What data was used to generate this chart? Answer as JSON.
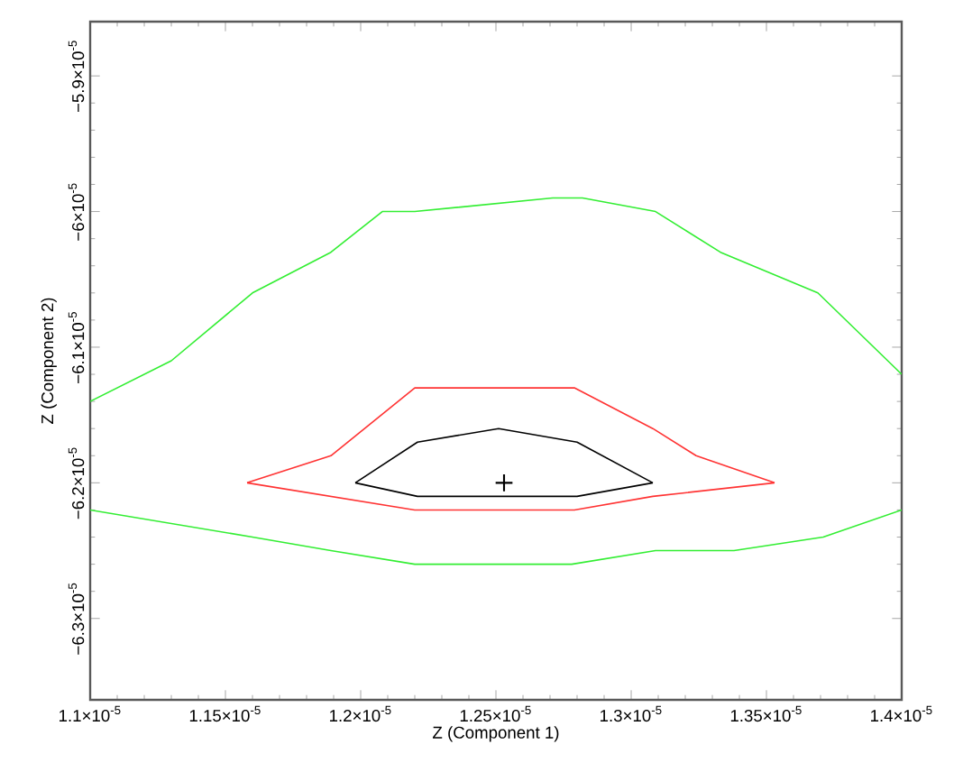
{
  "chart_data": {
    "type": "line",
    "xlabel": "Z (Component 1)",
    "ylabel": "Z (Component 2)",
    "xlim": [
      1.1e-05,
      1.4e-05
    ],
    "ylim": [
      -6.36e-05,
      -5.86e-05
    ],
    "xticks": [
      {
        "value": 1.1e-05,
        "label": "1.1×10$^{-5}$"
      },
      {
        "value": 1.15e-05,
        "label": "1.15×10$^{-5}$"
      },
      {
        "value": 1.2e-05,
        "label": "1.2×10$^{-5}$"
      },
      {
        "value": 1.25e-05,
        "label": "1.25×10$^{-5}$"
      },
      {
        "value": 1.3e-05,
        "label": "1.3×10$^{-5}$"
      },
      {
        "value": 1.35e-05,
        "label": "1.35×10$^{-5}$"
      },
      {
        "value": 1.4e-05,
        "label": "1.4×10$^{-5}$"
      }
    ],
    "yticks": [
      {
        "value": -6.3e-05,
        "label": "−6.3×10$^{-5}$"
      },
      {
        "value": -6.2e-05,
        "label": "−6.2×10$^{-5}$"
      },
      {
        "value": -6.1e-05,
        "label": "−6.1×10$^{-5}$"
      },
      {
        "value": -6e-05,
        "label": "−6×10$^{-5}$"
      },
      {
        "value": -5.9e-05,
        "label": "−5.9×10$^{-5}$"
      }
    ],
    "grid": false,
    "series": [
      {
        "color": "#33ee33",
        "x": [
          1.1e-05,
          1.13e-05,
          1.16e-05,
          1.189e-05,
          1.208e-05,
          1.22e-05,
          1.271e-05,
          1.282e-05,
          1.309e-05,
          1.333e-05,
          1.369e-05,
          1.4e-05
        ],
        "values": [
          -6.14e-05,
          -6.11e-05,
          -6.06e-05,
          -6.03e-05,
          -6e-05,
          -6e-05,
          -5.99e-05,
          -5.99e-05,
          -6e-05,
          -6.03e-05,
          -6.06e-05,
          -6.12e-05
        ]
      },
      {
        "color": "#33ee33",
        "x": [
          1.1e-05,
          1.16e-05,
          1.189e-05,
          1.22e-05,
          1.251e-05,
          1.278e-05,
          1.309e-05,
          1.338e-05,
          1.371e-05,
          1.4e-05
        ],
        "values": [
          -6.22e-05,
          -6.24e-05,
          -6.25e-05,
          -6.26e-05,
          -6.26e-05,
          -6.26e-05,
          -6.25e-05,
          -6.25e-05,
          -6.24e-05,
          -6.22e-05
        ]
      },
      {
        "color": "#ff3333",
        "x": [
          1.158e-05,
          1.189e-05,
          1.22e-05,
          1.251e-05,
          1.279e-05,
          1.308e-05,
          1.324e-05,
          1.353e-05
        ],
        "values": [
          -6.2e-05,
          -6.18e-05,
          -6.13e-05,
          -6.13e-05,
          -6.13e-05,
          -6.16e-05,
          -6.18e-05,
          -6.2e-05
        ]
      },
      {
        "color": "#ff3333",
        "x": [
          1.158e-05,
          1.22e-05,
          1.251e-05,
          1.279e-05,
          1.308e-05,
          1.353e-05
        ],
        "values": [
          -6.2e-05,
          -6.22e-05,
          -6.22e-05,
          -6.22e-05,
          -6.21e-05,
          -6.2e-05
        ]
      },
      {
        "color": "#000000",
        "x": [
          1.198e-05,
          1.221e-05,
          1.251e-05,
          1.28e-05,
          1.308e-05
        ],
        "values": [
          -6.2e-05,
          -6.17e-05,
          -6.16e-05,
          -6.17e-05,
          -6.2e-05
        ]
      },
      {
        "color": "#000000",
        "x": [
          1.198e-05,
          1.221e-05,
          1.251e-05,
          1.28e-05,
          1.308e-05
        ],
        "values": [
          -6.2e-05,
          -6.21e-05,
          -6.21e-05,
          -6.21e-05,
          -6.2e-05
        ]
      },
      {
        "type": "scatter",
        "marker": "cross",
        "color": "#000000",
        "x": [
          1.253e-05
        ],
        "values": [
          -6.2e-05
        ]
      }
    ]
  }
}
